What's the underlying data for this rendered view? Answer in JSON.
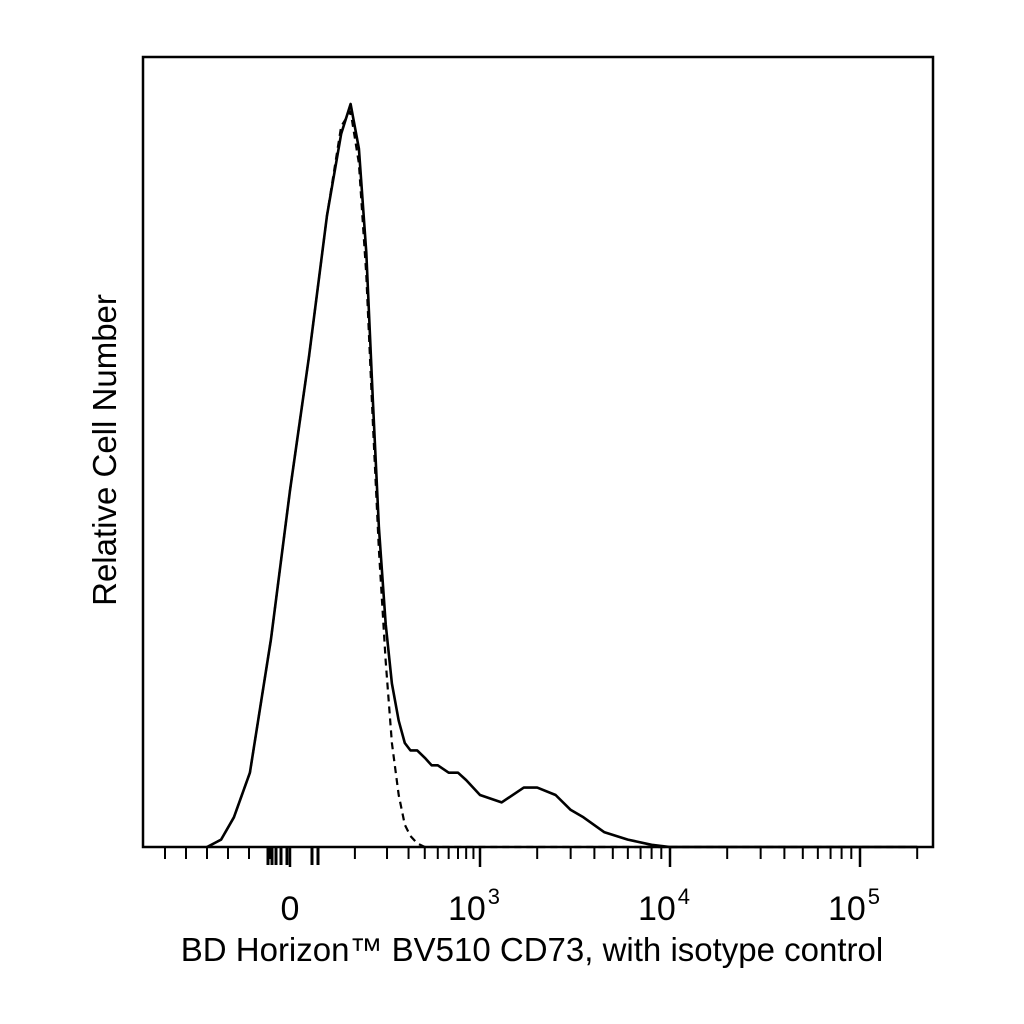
{
  "chart_data": {
    "type": "line",
    "title": "",
    "xlabel": "BD Horizon™ BV510 CD73, with isotype control",
    "ylabel": "Relative Cell Number",
    "x_scale": "biexponential",
    "xlim": [
      -500,
      200000
    ],
    "ylim": [
      0,
      100
    ],
    "x_ticks": [
      {
        "base": "0",
        "exp": "",
        "value": 0
      },
      {
        "base": "10",
        "exp": "3",
        "value": 1000
      },
      {
        "base": "10",
        "exp": "4",
        "value": 10000
      },
      {
        "base": "10",
        "exp": "5",
        "value": 100000
      }
    ],
    "grid": false,
    "legend": "none",
    "series": [
      {
        "style": "solid",
        "color": "#000000",
        "x": [
          -150,
          -110,
          -80,
          -50,
          -20,
          0,
          20,
          45,
          70,
          90,
          110,
          130,
          150,
          170,
          195,
          220,
          250,
          280,
          310,
          350,
          400,
          450,
          500,
          600,
          700,
          800,
          1000,
          1300,
          1700,
          2000,
          2500,
          3000,
          3500,
          4500,
          6000,
          8000,
          10000,
          100000,
          200000
        ],
        "y": [
          0,
          1,
          4,
          10,
          28,
          48,
          66,
          85,
          96,
          100,
          94,
          80,
          60,
          43,
          30,
          22,
          17,
          14,
          13,
          13,
          12,
          11,
          11,
          10,
          10,
          9,
          7,
          6,
          8,
          8,
          7,
          5,
          4,
          2,
          1,
          0.3,
          0,
          0,
          0
        ]
      },
      {
        "style": "dashed",
        "color": "#000000",
        "x": [
          -150,
          -110,
          -80,
          -50,
          -20,
          0,
          20,
          45,
          70,
          90,
          110,
          130,
          150,
          170,
          195,
          220,
          250,
          280,
          310,
          350,
          400,
          500,
          700,
          1000,
          10000,
          200000
        ],
        "y": [
          0,
          1,
          4,
          10,
          28,
          48,
          66,
          85,
          97,
          99,
          92,
          77,
          57,
          40,
          25,
          14,
          7,
          3,
          1.5,
          0.5,
          0,
          0,
          0,
          0,
          0,
          0
        ]
      }
    ]
  }
}
